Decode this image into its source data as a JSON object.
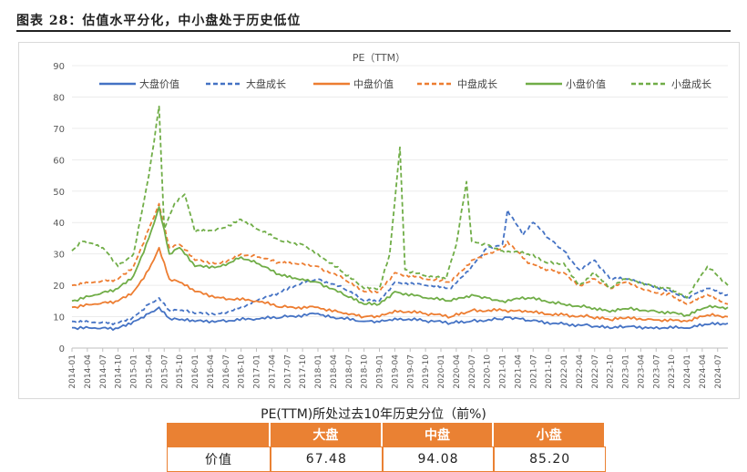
{
  "figure": {
    "title": "图表 28：估值水平分化，中小盘处于历史低位"
  },
  "chart_data": {
    "type": "line",
    "title": "PE（TTM）",
    "ylim": [
      0,
      90
    ],
    "yticks": [
      0,
      10,
      20,
      30,
      40,
      50,
      60,
      70,
      80,
      90
    ],
    "x_start": "2014-01",
    "x_end": "2024-09",
    "xticks": [
      "2014-01",
      "2014-04",
      "2014-07",
      "2014-10",
      "2015-01",
      "2015-04",
      "2015-07",
      "2015-10",
      "2016-01",
      "2016-04",
      "2016-07",
      "2016-10",
      "2017-01",
      "2017-04",
      "2017-07",
      "2017-10",
      "2018-01",
      "2018-04",
      "2018-07",
      "2018-10",
      "2019-01",
      "2019-04",
      "2019-07",
      "2019-10",
      "2020-01",
      "2020-04",
      "2020-07",
      "2020-10",
      "2021-01",
      "2021-04",
      "2021-07",
      "2021-10",
      "2022-01",
      "2022-04",
      "2022-07",
      "2022-10",
      "2023-01",
      "2023-04",
      "2023-07",
      "2023-10",
      "2024-01",
      "2024-04",
      "2024-07"
    ],
    "legend_position": "top",
    "series": [
      {
        "name": "大盘价值",
        "color": "#4472c4",
        "dash": "solid",
        "points": [
          [
            "2014-01",
            6.5
          ],
          [
            "2014-06",
            6.2
          ],
          [
            "2014-10",
            6.3
          ],
          [
            "2015-01",
            8.5
          ],
          [
            "2015-04",
            11
          ],
          [
            "2015-06",
            13
          ],
          [
            "2015-08",
            9.5
          ],
          [
            "2015-10",
            9
          ],
          [
            "2016-01",
            8.5
          ],
          [
            "2016-06",
            8.7
          ],
          [
            "2017-01",
            9.3
          ],
          [
            "2017-06",
            9.8
          ],
          [
            "2018-01",
            11
          ],
          [
            "2018-04",
            9.8
          ],
          [
            "2018-10",
            8.5
          ],
          [
            "2019-01",
            8.3
          ],
          [
            "2019-04",
            9.5
          ],
          [
            "2019-10",
            8.7
          ],
          [
            "2020-03",
            8
          ],
          [
            "2020-07",
            8.6
          ],
          [
            "2020-12",
            9.2
          ],
          [
            "2021-02",
            9.8
          ],
          [
            "2021-06",
            8.8
          ],
          [
            "2022-01",
            7.6
          ],
          [
            "2022-06",
            7.2
          ],
          [
            "2022-10",
            6.3
          ],
          [
            "2023-01",
            6.8
          ],
          [
            "2023-06",
            6.6
          ],
          [
            "2024-01",
            6.4
          ],
          [
            "2024-05",
            7.5
          ],
          [
            "2024-09",
            7.9
          ]
        ]
      },
      {
        "name": "大盘成长",
        "color": "#4472c4",
        "dash": "dashed",
        "points": [
          [
            "2014-01",
            8.5
          ],
          [
            "2014-06",
            8
          ],
          [
            "2014-10",
            8
          ],
          [
            "2015-01",
            10
          ],
          [
            "2015-04",
            14
          ],
          [
            "2015-06",
            16
          ],
          [
            "2015-08",
            12
          ],
          [
            "2015-10",
            12
          ],
          [
            "2016-01",
            11
          ],
          [
            "2016-06",
            11
          ],
          [
            "2016-10",
            13
          ],
          [
            "2017-01",
            15
          ],
          [
            "2017-06",
            18
          ],
          [
            "2017-10",
            21
          ],
          [
            "2018-01",
            22
          ],
          [
            "2018-06",
            19
          ],
          [
            "2018-10",
            15
          ],
          [
            "2019-01",
            15
          ],
          [
            "2019-04",
            21
          ],
          [
            "2019-10",
            20
          ],
          [
            "2020-03",
            19
          ],
          [
            "2020-07",
            26
          ],
          [
            "2020-10",
            32
          ],
          [
            "2021-01",
            33
          ],
          [
            "2021-02",
            44
          ],
          [
            "2021-05",
            36
          ],
          [
            "2021-07",
            40
          ],
          [
            "2021-10",
            35
          ],
          [
            "2022-01",
            31
          ],
          [
            "2022-04",
            25
          ],
          [
            "2022-07",
            28
          ],
          [
            "2022-10",
            22
          ],
          [
            "2023-01",
            22
          ],
          [
            "2023-06",
            20
          ],
          [
            "2023-10",
            18
          ],
          [
            "2024-01",
            16
          ],
          [
            "2024-05",
            19
          ],
          [
            "2024-09",
            17
          ]
        ]
      },
      {
        "name": "中盘价值",
        "color": "#ed7d31",
        "dash": "solid",
        "points": [
          [
            "2014-01",
            13
          ],
          [
            "2014-06",
            14
          ],
          [
            "2014-10",
            15
          ],
          [
            "2015-01",
            18
          ],
          [
            "2015-04",
            25
          ],
          [
            "2015-06",
            32
          ],
          [
            "2015-08",
            22
          ],
          [
            "2015-10",
            21
          ],
          [
            "2016-01",
            18
          ],
          [
            "2016-06",
            16
          ],
          [
            "2017-01",
            15
          ],
          [
            "2017-06",
            13
          ],
          [
            "2018-01",
            13
          ],
          [
            "2018-06",
            11
          ],
          [
            "2018-10",
            10
          ],
          [
            "2019-01",
            10
          ],
          [
            "2019-04",
            12
          ],
          [
            "2019-10",
            11
          ],
          [
            "2020-03",
            10
          ],
          [
            "2020-07",
            12
          ],
          [
            "2021-01",
            12
          ],
          [
            "2021-06",
            11.5
          ],
          [
            "2022-01",
            10.5
          ],
          [
            "2022-06",
            10
          ],
          [
            "2022-10",
            9
          ],
          [
            "2023-01",
            9.5
          ],
          [
            "2023-06",
            9.2
          ],
          [
            "2024-01",
            8.5
          ],
          [
            "2024-05",
            10.5
          ],
          [
            "2024-09",
            10
          ]
        ]
      },
      {
        "name": "中盘成长",
        "color": "#ed7d31",
        "dash": "dashed",
        "points": [
          [
            "2014-01",
            20
          ],
          [
            "2014-06",
            21
          ],
          [
            "2014-10",
            22
          ],
          [
            "2015-01",
            26
          ],
          [
            "2015-04",
            38
          ],
          [
            "2015-06",
            46
          ],
          [
            "2015-08",
            32
          ],
          [
            "2015-10",
            33
          ],
          [
            "2016-01",
            28
          ],
          [
            "2016-06",
            27
          ],
          [
            "2016-10",
            30
          ],
          [
            "2017-01",
            29
          ],
          [
            "2017-06",
            27
          ],
          [
            "2017-10",
            27
          ],
          [
            "2018-01",
            26
          ],
          [
            "2018-06",
            22
          ],
          [
            "2018-10",
            18
          ],
          [
            "2019-01",
            18
          ],
          [
            "2019-04",
            24
          ],
          [
            "2019-10",
            22
          ],
          [
            "2020-03",
            21
          ],
          [
            "2020-07",
            28
          ],
          [
            "2020-10",
            30
          ],
          [
            "2021-01",
            32
          ],
          [
            "2021-02",
            34
          ],
          [
            "2021-06",
            27
          ],
          [
            "2021-10",
            25
          ],
          [
            "2022-01",
            24
          ],
          [
            "2022-04",
            20
          ],
          [
            "2022-07",
            22
          ],
          [
            "2022-10",
            19
          ],
          [
            "2023-01",
            21
          ],
          [
            "2023-06",
            18
          ],
          [
            "2023-10",
            17
          ],
          [
            "2024-01",
            14
          ],
          [
            "2024-05",
            17
          ],
          [
            "2024-09",
            14
          ]
        ]
      },
      {
        "name": "小盘价值",
        "color": "#70ad47",
        "dash": "solid",
        "points": [
          [
            "2014-01",
            15
          ],
          [
            "2014-06",
            17
          ],
          [
            "2014-10",
            19
          ],
          [
            "2015-01",
            23
          ],
          [
            "2015-04",
            35
          ],
          [
            "2015-06",
            45
          ],
          [
            "2015-08",
            30
          ],
          [
            "2015-10",
            32
          ],
          [
            "2016-01",
            26
          ],
          [
            "2016-06",
            26
          ],
          [
            "2016-10",
            29
          ],
          [
            "2017-01",
            27
          ],
          [
            "2017-06",
            23
          ],
          [
            "2017-10",
            22
          ],
          [
            "2018-01",
            21
          ],
          [
            "2018-06",
            17
          ],
          [
            "2018-10",
            14
          ],
          [
            "2019-01",
            14
          ],
          [
            "2019-04",
            18
          ],
          [
            "2019-10",
            16
          ],
          [
            "2020-03",
            15
          ],
          [
            "2020-07",
            17
          ],
          [
            "2020-10",
            16
          ],
          [
            "2021-01",
            15
          ],
          [
            "2021-06",
            16
          ],
          [
            "2022-01",
            14
          ],
          [
            "2022-06",
            13
          ],
          [
            "2022-10",
            11.5
          ],
          [
            "2023-01",
            12.5
          ],
          [
            "2023-06",
            12
          ],
          [
            "2024-01",
            10.5
          ],
          [
            "2024-05",
            13
          ],
          [
            "2024-09",
            13
          ]
        ]
      },
      {
        "name": "小盘成长",
        "color": "#70ad47",
        "dash": "dashed",
        "points": [
          [
            "2014-01",
            31
          ],
          [
            "2014-03",
            34
          ],
          [
            "2014-07",
            32
          ],
          [
            "2014-10",
            26
          ],
          [
            "2015-01",
            30
          ],
          [
            "2015-04",
            55
          ],
          [
            "2015-06",
            77
          ],
          [
            "2015-07",
            38
          ],
          [
            "2015-09",
            46
          ],
          [
            "2015-11",
            49
          ],
          [
            "2016-01",
            37
          ],
          [
            "2016-06",
            38
          ],
          [
            "2016-10",
            41
          ],
          [
            "2017-01",
            38
          ],
          [
            "2017-06",
            34
          ],
          [
            "2017-10",
            33
          ],
          [
            "2018-01",
            30
          ],
          [
            "2018-06",
            24
          ],
          [
            "2018-10",
            19
          ],
          [
            "2019-01",
            19
          ],
          [
            "2019-03",
            30
          ],
          [
            "2019-05",
            64
          ],
          [
            "2019-06",
            25
          ],
          [
            "2019-10",
            23
          ],
          [
            "2020-02",
            22
          ],
          [
            "2020-04",
            33
          ],
          [
            "2020-06",
            53
          ],
          [
            "2020-07",
            34
          ],
          [
            "2020-10",
            33
          ],
          [
            "2021-01",
            31
          ],
          [
            "2021-06",
            30
          ],
          [
            "2021-10",
            27
          ],
          [
            "2022-01",
            27
          ],
          [
            "2022-04",
            20
          ],
          [
            "2022-07",
            24
          ],
          [
            "2022-10",
            19
          ],
          [
            "2023-01",
            22
          ],
          [
            "2023-06",
            20
          ],
          [
            "2023-10",
            19
          ],
          [
            "2024-01",
            16
          ],
          [
            "2024-05",
            26
          ],
          [
            "2024-09",
            20
          ]
        ]
      }
    ]
  },
  "table": {
    "title": "PE(TTM)所处过去10年历史分位（前%)",
    "headers": [
      "",
      "大盘",
      "中盘",
      "小盘"
    ],
    "row_label": "价值",
    "values": [
      "67.48",
      "94.08",
      "85.20"
    ]
  }
}
